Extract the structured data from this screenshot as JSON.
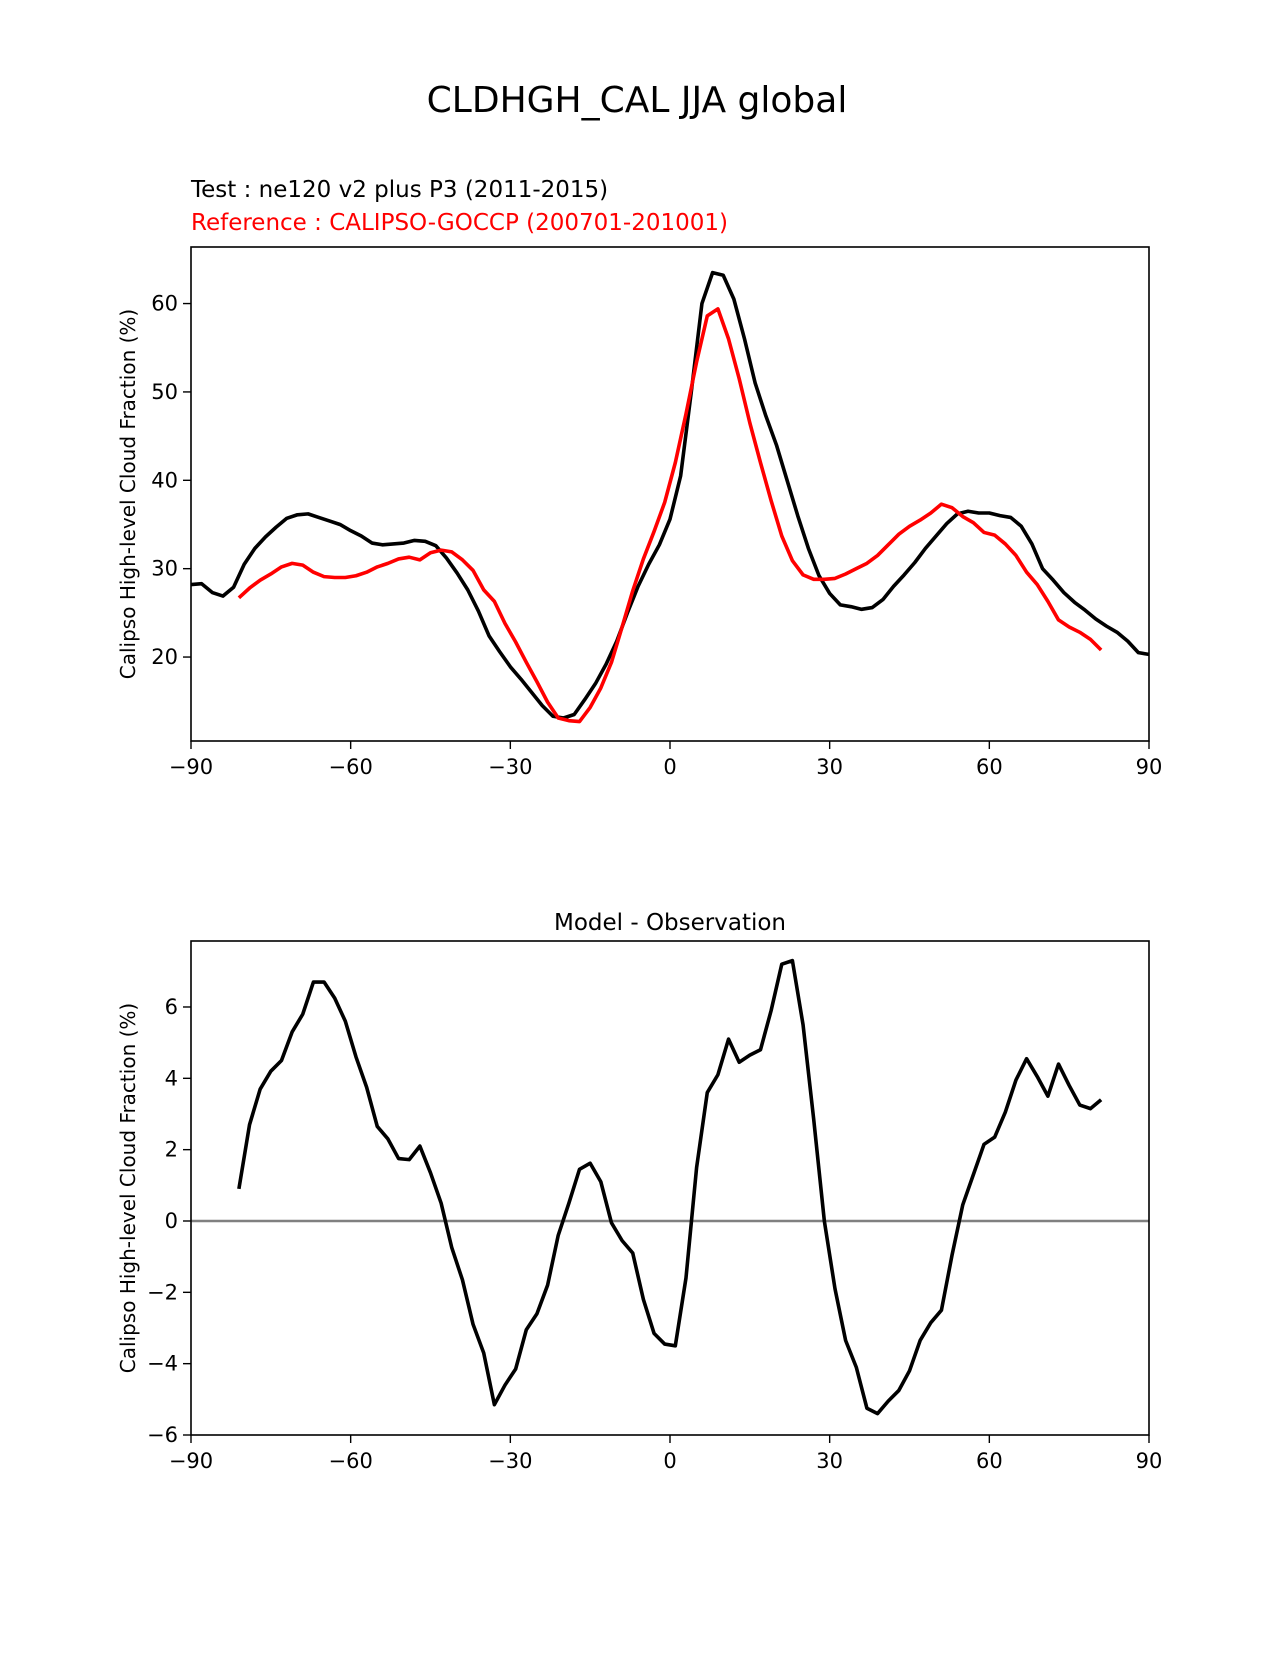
{
  "suptitle": "CLDHGH_CAL JJA global",
  "colors": {
    "test": "#000000",
    "reference": "#ff0000",
    "zero_line": "#808080",
    "axes": "#000000"
  },
  "chart_data": [
    {
      "type": "line",
      "title_test": "Test : ne120 v2 plus P3 (2011-2015)",
      "title_reference": "Reference : CALIPSO-GOCCP (200701-201001)",
      "xlabel": "",
      "ylabel": "Calipso High-level Cloud Fraction (%)",
      "xlim": [
        -90,
        90
      ],
      "ylim": [
        10.5,
        66.4
      ],
      "xticks": [
        -90,
        -60,
        -30,
        0,
        30,
        60,
        90
      ],
      "xtick_labels": [
        "−90",
        "−60",
        "−30",
        "0",
        "30",
        "60",
        "90"
      ],
      "yticks": [
        20,
        30,
        40,
        50,
        60
      ],
      "ytick_labels": [
        "20",
        "30",
        "40",
        "50",
        "60"
      ],
      "series": [
        {
          "role": "test",
          "points": [
            [
              -90,
              28.2
            ],
            [
              -88,
              28.3
            ],
            [
              -86,
              27.3
            ],
            [
              -84,
              26.9
            ],
            [
              -82,
              27.9
            ],
            [
              -80,
              30.5
            ],
            [
              -78,
              32.3
            ],
            [
              -76,
              33.6
            ],
            [
              -74,
              34.7
            ],
            [
              -72,
              35.7
            ],
            [
              -70,
              36.1
            ],
            [
              -68,
              36.2
            ],
            [
              -66,
              35.8
            ],
            [
              -64,
              35.4
            ],
            [
              -62,
              35.0
            ],
            [
              -60,
              34.3
            ],
            [
              -58,
              33.7
            ],
            [
              -56,
              32.9
            ],
            [
              -54,
              32.7
            ],
            [
              -52,
              32.8
            ],
            [
              -50,
              32.9
            ],
            [
              -48,
              33.2
            ],
            [
              -46,
              33.1
            ],
            [
              -44,
              32.6
            ],
            [
              -42,
              31.2
            ],
            [
              -40,
              29.5
            ],
            [
              -38,
              27.6
            ],
            [
              -36,
              25.2
            ],
            [
              -34,
              22.4
            ],
            [
              -32,
              20.6
            ],
            [
              -30,
              18.9
            ],
            [
              -28,
              17.5
            ],
            [
              -26,
              16.0
            ],
            [
              -24,
              14.5
            ],
            [
              -22,
              13.3
            ],
            [
              -20,
              13.1
            ],
            [
              -18,
              13.5
            ],
            [
              -16,
              15.2
            ],
            [
              -14,
              17.0
            ],
            [
              -12,
              19.2
            ],
            [
              -10,
              21.8
            ],
            [
              -8,
              25.0
            ],
            [
              -6,
              28.0
            ],
            [
              -4,
              30.5
            ],
            [
              -2,
              32.7
            ],
            [
              0,
              35.6
            ],
            [
              2,
              40.5
            ],
            [
              4,
              50.0
            ],
            [
              6,
              60.0
            ],
            [
              8,
              63.5
            ],
            [
              10,
              63.2
            ],
            [
              12,
              60.5
            ],
            [
              14,
              56.0
            ],
            [
              16,
              51.0
            ],
            [
              18,
              47.3
            ],
            [
              20,
              44.0
            ],
            [
              22,
              40.0
            ],
            [
              24,
              36.0
            ],
            [
              26,
              32.3
            ],
            [
              28,
              29.2
            ],
            [
              30,
              27.2
            ],
            [
              32,
              25.9
            ],
            [
              34,
              25.7
            ],
            [
              36,
              25.4
            ],
            [
              38,
              25.6
            ],
            [
              40,
              26.5
            ],
            [
              42,
              28.0
            ],
            [
              44,
              29.3
            ],
            [
              46,
              30.7
            ],
            [
              48,
              32.3
            ],
            [
              50,
              33.7
            ],
            [
              52,
              35.1
            ],
            [
              54,
              36.2
            ],
            [
              56,
              36.5
            ],
            [
              58,
              36.3
            ],
            [
              60,
              36.3
            ],
            [
              62,
              36.0
            ],
            [
              64,
              35.8
            ],
            [
              66,
              34.8
            ],
            [
              68,
              32.8
            ],
            [
              70,
              30.0
            ],
            [
              72,
              28.7
            ],
            [
              74,
              27.3
            ],
            [
              76,
              26.2
            ],
            [
              78,
              25.3
            ],
            [
              80,
              24.3
            ],
            [
              82,
              23.5
            ],
            [
              84,
              22.8
            ],
            [
              86,
              21.8
            ],
            [
              88,
              20.5
            ],
            [
              90,
              20.3
            ]
          ]
        },
        {
          "role": "reference",
          "points": [
            [
              -81,
              26.7
            ],
            [
              -79,
              27.8
            ],
            [
              -77,
              28.7
            ],
            [
              -75,
              29.4
            ],
            [
              -73,
              30.2
            ],
            [
              -71,
              30.6
            ],
            [
              -69,
              30.4
            ],
            [
              -67,
              29.6
            ],
            [
              -65,
              29.1
            ],
            [
              -63,
              29.0
            ],
            [
              -61,
              29.0
            ],
            [
              -59,
              29.2
            ],
            [
              -57,
              29.6
            ],
            [
              -55,
              30.2
            ],
            [
              -53,
              30.6
            ],
            [
              -51,
              31.1
            ],
            [
              -49,
              31.3
            ],
            [
              -47,
              31.0
            ],
            [
              -45,
              31.8
            ],
            [
              -43,
              32.1
            ],
            [
              -41,
              31.9
            ],
            [
              -39,
              31.0
            ],
            [
              -37,
              29.8
            ],
            [
              -35,
              27.6
            ],
            [
              -33,
              26.3
            ],
            [
              -31,
              23.8
            ],
            [
              -29,
              21.7
            ],
            [
              -27,
              19.4
            ],
            [
              -25,
              17.2
            ],
            [
              -23,
              14.9
            ],
            [
              -21,
              13.1
            ],
            [
              -19,
              12.8
            ],
            [
              -17,
              12.7
            ],
            [
              -15,
              14.3
            ],
            [
              -13,
              16.5
            ],
            [
              -11,
              19.4
            ],
            [
              -9,
              23.4
            ],
            [
              -7,
              27.5
            ],
            [
              -5,
              31.1
            ],
            [
              -3,
              34.2
            ],
            [
              -1,
              37.5
            ],
            [
              1,
              42.0
            ],
            [
              3,
              47.5
            ],
            [
              5,
              53.4
            ],
            [
              7,
              58.6
            ],
            [
              9,
              59.4
            ],
            [
              11,
              56.0
            ],
            [
              13,
              51.5
            ],
            [
              15,
              46.5
            ],
            [
              17,
              42.0
            ],
            [
              19,
              37.7
            ],
            [
              21,
              33.7
            ],
            [
              23,
              30.9
            ],
            [
              25,
              29.3
            ],
            [
              27,
              28.8
            ],
            [
              29,
              28.8
            ],
            [
              31,
              28.9
            ],
            [
              33,
              29.4
            ],
            [
              35,
              30.0
            ],
            [
              37,
              30.6
            ],
            [
              39,
              31.5
            ],
            [
              41,
              32.7
            ],
            [
              43,
              33.9
            ],
            [
              45,
              34.8
            ],
            [
              47,
              35.5
            ],
            [
              49,
              36.3
            ],
            [
              51,
              37.3
            ],
            [
              53,
              36.9
            ],
            [
              55,
              35.9
            ],
            [
              57,
              35.2
            ],
            [
              59,
              34.1
            ],
            [
              61,
              33.8
            ],
            [
              63,
              32.8
            ],
            [
              65,
              31.5
            ],
            [
              67,
              29.6
            ],
            [
              69,
              28.2
            ],
            [
              71,
              26.3
            ],
            [
              73,
              24.2
            ],
            [
              75,
              23.4
            ],
            [
              77,
              22.8
            ],
            [
              79,
              22.0
            ],
            [
              81,
              20.8
            ]
          ]
        }
      ]
    },
    {
      "type": "line",
      "title": "Model - Observation",
      "xlabel": "",
      "ylabel": "Calipso High-level Cloud Fraction (%)",
      "xlim": [
        -90,
        90
      ],
      "ylim": [
        -6,
        7.85
      ],
      "xticks": [
        -90,
        -60,
        -30,
        0,
        30,
        60,
        90
      ],
      "xtick_labels": [
        "−90",
        "−60",
        "−30",
        "0",
        "30",
        "60",
        "90"
      ],
      "yticks": [
        -6,
        -4,
        -2,
        0,
        2,
        4,
        6
      ],
      "ytick_labels": [
        "−6",
        "−4",
        "−2",
        "0",
        "2",
        "4",
        "6"
      ],
      "zero_line": 0,
      "series": [
        {
          "role": "difference",
          "points": [
            [
              -81,
              0.9
            ],
            [
              -79,
              2.7
            ],
            [
              -77,
              3.7
            ],
            [
              -75,
              4.2
            ],
            [
              -73,
              4.5
            ],
            [
              -71,
              5.3
            ],
            [
              -69,
              5.8
            ],
            [
              -67,
              6.7
            ],
            [
              -65,
              6.7
            ],
            [
              -63,
              6.25
            ],
            [
              -61,
              5.6
            ],
            [
              -59,
              4.6
            ],
            [
              -57,
              3.75
            ],
            [
              -55,
              2.65
            ],
            [
              -53,
              2.3
            ],
            [
              -51,
              1.75
            ],
            [
              -49,
              1.72
            ],
            [
              -47,
              2.1
            ],
            [
              -45,
              1.35
            ],
            [
              -43,
              0.5
            ],
            [
              -41,
              -0.75
            ],
            [
              -39,
              -1.65
            ],
            [
              -37,
              -2.9
            ],
            [
              -35,
              -3.7
            ],
            [
              -33,
              -5.15
            ],
            [
              -31,
              -4.6
            ],
            [
              -29,
              -4.15
            ],
            [
              -27,
              -3.05
            ],
            [
              -25,
              -2.6
            ],
            [
              -23,
              -1.8
            ],
            [
              -21,
              -0.4
            ],
            [
              -19,
              0.5
            ],
            [
              -17,
              1.45
            ],
            [
              -15,
              1.62
            ],
            [
              -13,
              1.1
            ],
            [
              -11,
              -0.05
            ],
            [
              -9,
              -0.55
            ],
            [
              -7,
              -0.9
            ],
            [
              -5,
              -2.2
            ],
            [
              -3,
              -3.15
            ],
            [
              -1,
              -3.45
            ],
            [
              1,
              -3.5
            ],
            [
              3,
              -1.6
            ],
            [
              5,
              1.5
            ],
            [
              7,
              3.6
            ],
            [
              9,
              4.1
            ],
            [
              11,
              5.1
            ],
            [
              13,
              4.45
            ],
            [
              15,
              4.65
            ],
            [
              17,
              4.8
            ],
            [
              19,
              5.9
            ],
            [
              21,
              7.2
            ],
            [
              23,
              7.3
            ],
            [
              25,
              5.5
            ],
            [
              27,
              2.85
            ],
            [
              29,
              0.0
            ],
            [
              31,
              -1.9
            ],
            [
              33,
              -3.35
            ],
            [
              35,
              -4.1
            ],
            [
              37,
              -5.25
            ],
            [
              39,
              -5.4
            ],
            [
              41,
              -5.05
            ],
            [
              43,
              -4.75
            ],
            [
              45,
              -4.2
            ],
            [
              47,
              -3.35
            ],
            [
              49,
              -2.85
            ],
            [
              51,
              -2.5
            ],
            [
              53,
              -0.95
            ],
            [
              55,
              0.45
            ],
            [
              57,
              1.3
            ],
            [
              59,
              2.15
            ],
            [
              61,
              2.35
            ],
            [
              63,
              3.05
            ],
            [
              65,
              3.95
            ],
            [
              67,
              4.55
            ],
            [
              69,
              4.05
            ],
            [
              71,
              3.5
            ],
            [
              73,
              4.4
            ],
            [
              75,
              3.8
            ],
            [
              77,
              3.25
            ],
            [
              79,
              3.15
            ],
            [
              81,
              3.4
            ]
          ]
        }
      ]
    }
  ]
}
